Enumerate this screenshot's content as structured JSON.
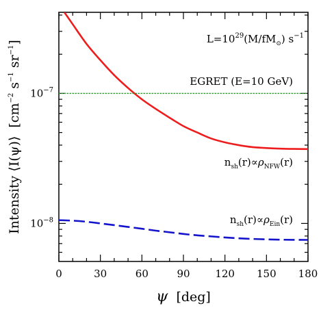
{
  "chart_data": {
    "type": "line",
    "xlabel": {
      "symbol": "ψ",
      "unit": "[deg]"
    },
    "ylabel": {
      "text": "Intensity ⟨I(ψ)⟩",
      "unit_prefix": "[cm",
      "unit_exp1": "−2",
      "unit_s": " s",
      "unit_exp2": "−1",
      "unit_sr": " sr",
      "unit_exp3": "−1",
      "unit_suffix": "]"
    },
    "xlim": [
      0,
      180
    ],
    "ylim": [
      5.1e-09,
      4.2e-07
    ],
    "yscale": "log",
    "xticks": [
      {
        "value": 0,
        "label": "0"
      },
      {
        "value": 30,
        "label": "30"
      },
      {
        "value": 60,
        "label": "60"
      },
      {
        "value": 90,
        "label": "90"
      },
      {
        "value": 120,
        "label": "120"
      },
      {
        "value": 150,
        "label": "150"
      },
      {
        "value": 180,
        "label": "180"
      }
    ],
    "yticks_major": [
      {
        "value": 1e-08,
        "base": "10",
        "exp": "−8"
      },
      {
        "value": 1e-07,
        "base": "10",
        "exp": "−7"
      }
    ],
    "yticks_minor": [
      6e-09,
      7e-09,
      8e-09,
      9e-09,
      2e-08,
      3e-08,
      4e-08,
      5e-08,
      6e-08,
      7e-08,
      8e-08,
      9e-08,
      2e-07,
      3e-07,
      4e-07
    ],
    "series": [
      {
        "name": "NFW",
        "color": "#ee1c1c",
        "style": "solid",
        "x": [
          4,
          10,
          20,
          30,
          40,
          50,
          60,
          70,
          80,
          90,
          100,
          110,
          120,
          130,
          140,
          150,
          160,
          170,
          180
        ],
        "y": [
          4.2e-07,
          3.4e-07,
          2.4e-07,
          1.8e-07,
          1.38e-07,
          1.1e-07,
          9e-08,
          7.6e-08,
          6.5e-08,
          5.6e-08,
          5e-08,
          4.5e-08,
          4.2e-08,
          4e-08,
          3.86e-08,
          3.8e-08,
          3.76e-08,
          3.74e-08,
          3.73e-08
        ]
      },
      {
        "name": "Ein",
        "color": "#1414cc",
        "style": "dashed",
        "x": [
          0,
          10,
          20,
          30,
          40,
          50,
          60,
          70,
          80,
          90,
          100,
          110,
          120,
          130,
          140,
          150,
          160,
          170,
          180
        ],
        "y": [
          1.06e-08,
          1.05e-08,
          1.03e-08,
          1e-08,
          9.7e-09,
          9.4e-09,
          9.1e-09,
          8.8e-09,
          8.55e-09,
          8.3e-09,
          8.1e-09,
          7.95e-09,
          7.8e-09,
          7.68e-09,
          7.6e-09,
          7.54e-09,
          7.5e-09,
          7.48e-09,
          7.47e-09
        ]
      },
      {
        "name": "EGRET",
        "color": "#1aa01a",
        "style": "dotted",
        "x": [
          0,
          180
        ],
        "y": [
          1e-07,
          1e-07
        ]
      }
    ],
    "annotations": {
      "luminosity": {
        "prefix": "L=10",
        "exp": "29",
        "mid": "(M/fM",
        "sub": "⊙",
        "suffix": ") s",
        "exp2": "−1"
      },
      "egret": "EGRET (E=10 GeV)",
      "nfw": {
        "n": "n",
        "n_sub": "sh",
        "mid": "(r)∝",
        "rho": "ρ",
        "rho_sub": "NFW",
        "end": "(r)"
      },
      "ein": {
        "n": "n",
        "n_sub": "sh",
        "mid": "(r)∝",
        "rho": "ρ",
        "rho_sub": "Ein",
        "end": "(r)"
      }
    }
  }
}
